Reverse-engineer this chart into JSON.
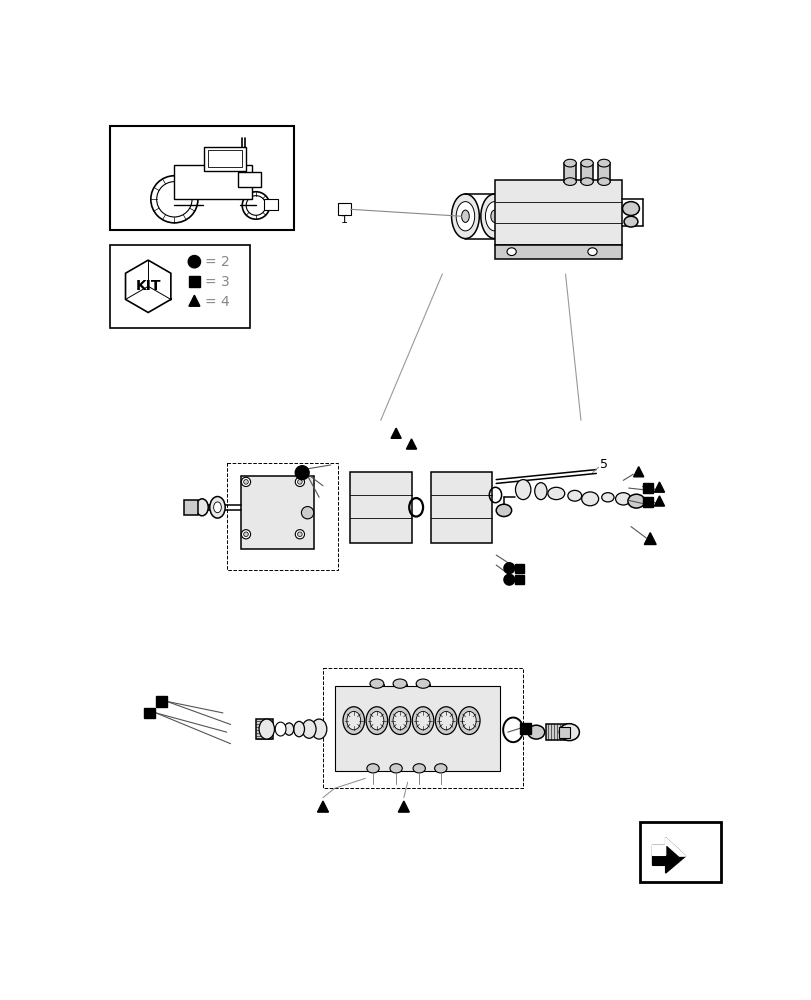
{
  "bg_color": "#ffffff",
  "lc": "#000000",
  "gray1": "#cccccc",
  "gray2": "#e8e8e8",
  "gray3": "#aaaaaa",
  "lgray": "#bbbbbb"
}
